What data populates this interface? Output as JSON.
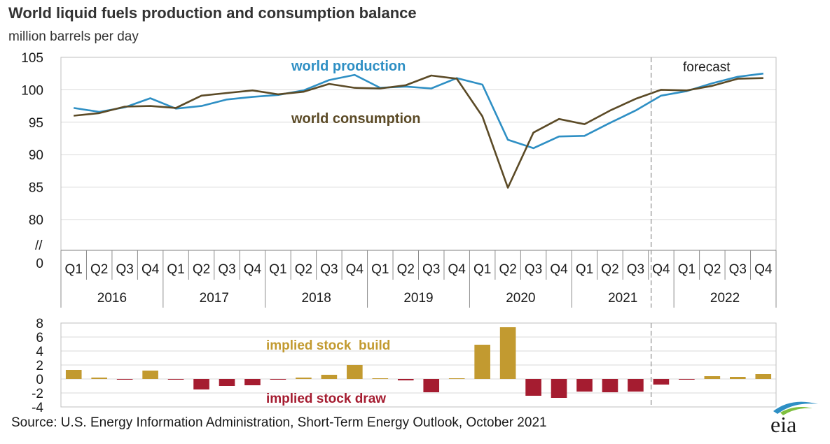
{
  "title": "World liquid fuels production and consumption balance",
  "subtitle": "million barrels per day",
  "source": "Source: U.S. Energy Information Administration, Short-Term Energy Outlook, October 2021",
  "logo_text": "eia",
  "forecast_label": "forecast",
  "axis_break": "//",
  "colors": {
    "production": "#2e8fc4",
    "consumption": "#5b4a26",
    "build": "#c29a30",
    "draw": "#a51c30",
    "grid": "#d9d9d9",
    "forecast_line": "#a6a6a6"
  },
  "chart_data": [
    {
      "type": "line",
      "categories": [
        "Q1",
        "Q2",
        "Q3",
        "Q4",
        "Q1",
        "Q2",
        "Q3",
        "Q4",
        "Q1",
        "Q2",
        "Q3",
        "Q4",
        "Q1",
        "Q2",
        "Q3",
        "Q4",
        "Q1",
        "Q2",
        "Q3",
        "Q4",
        "Q1",
        "Q2",
        "Q3",
        "Q4",
        "Q1",
        "Q2",
        "Q3",
        "Q4"
      ],
      "years": [
        "2016",
        "2017",
        "2018",
        "2019",
        "2020",
        "2021",
        "2022"
      ],
      "yticks": [
        "105",
        "100",
        "95",
        "90",
        "85",
        "80",
        "0"
      ],
      "ylim": [
        80,
        105
      ],
      "grid": true,
      "series": [
        {
          "name": "world production",
          "key": "production",
          "values": [
            97.2,
            96.6,
            97.3,
            98.7,
            97.1,
            97.5,
            98.5,
            98.9,
            99.2,
            99.9,
            101.5,
            102.3,
            100.3,
            100.5,
            100.2,
            101.8,
            100.8,
            92.3,
            91.0,
            92.8,
            92.9,
            94.9,
            96.8,
            99.1,
            99.8,
            101.0,
            102.0,
            102.5
          ]
        },
        {
          "name": "world consumption",
          "key": "consumption",
          "values": [
            96.0,
            96.4,
            97.4,
            97.5,
            97.2,
            99.1,
            99.5,
            99.9,
            99.3,
            99.7,
            100.9,
            100.3,
            100.2,
            100.7,
            102.2,
            101.7,
            95.9,
            84.9,
            93.4,
            95.5,
            94.7,
            96.8,
            98.6,
            100.0,
            99.9,
            100.6,
            101.7,
            101.8
          ]
        }
      ],
      "forecast_start_index": 23
    },
    {
      "type": "bar",
      "yticks": [
        "8",
        "6",
        "4",
        "2",
        "0",
        "-2",
        "-4"
      ],
      "ylim": [
        -4,
        8
      ],
      "grid": true,
      "legend": {
        "build": "implied stock  build",
        "draw": "implied stock draw"
      },
      "values": [
        1.3,
        0.2,
        -0.1,
        1.2,
        -0.1,
        -1.5,
        -1.0,
        -0.9,
        -0.1,
        0.2,
        0.6,
        2.0,
        0.1,
        -0.2,
        -1.9,
        0.1,
        4.9,
        7.4,
        -2.4,
        -2.7,
        -1.8,
        -1.9,
        -1.8,
        -0.8,
        -0.1,
        0.4,
        0.3,
        0.7
      ]
    }
  ]
}
